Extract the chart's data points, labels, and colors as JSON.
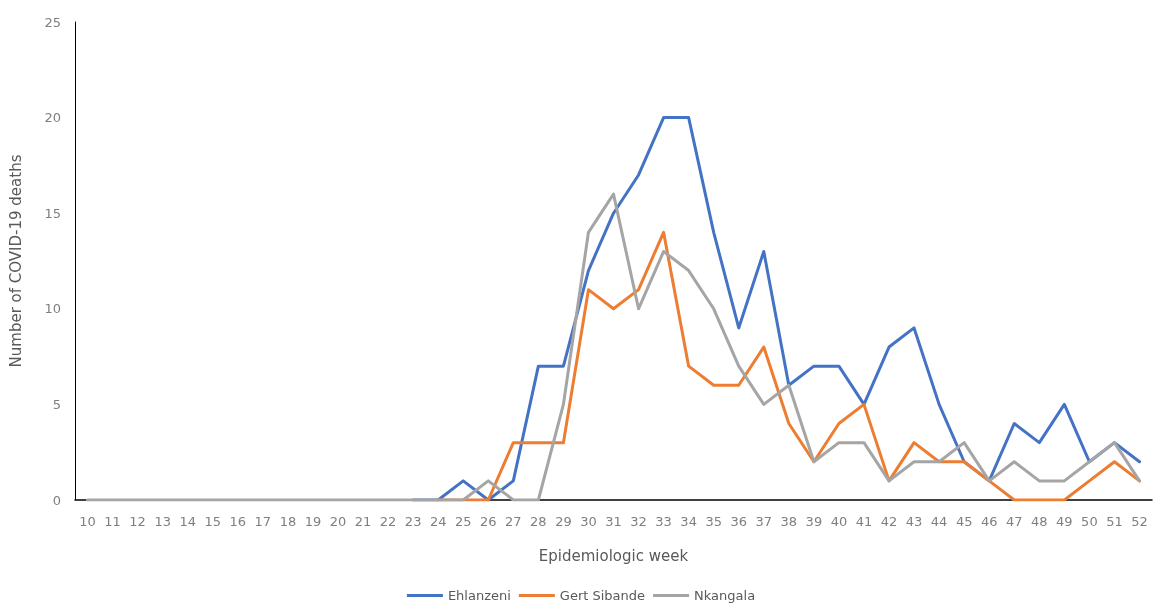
{
  "chart_data": {
    "type": "line",
    "xlabel": "Epidemiologic week",
    "ylabel": "Number of COVID-19 deaths",
    "categories": [
      "10",
      "11",
      "12",
      "13",
      "14",
      "15",
      "16",
      "17",
      "18",
      "19",
      "20",
      "21",
      "22",
      "23",
      "24",
      "25",
      "26",
      "27",
      "28",
      "29",
      "30",
      "31",
      "32",
      "33",
      "34",
      "35",
      "36",
      "37",
      "38",
      "39",
      "40",
      "41",
      "42",
      "43",
      "44",
      "45",
      "46",
      "47",
      "48",
      "49",
      "50",
      "51",
      "52"
    ],
    "series": [
      {
        "name": "Ehlanzeni",
        "color": "#4472c4",
        "values": [
          null,
          null,
          null,
          null,
          null,
          null,
          null,
          null,
          null,
          null,
          null,
          null,
          null,
          0,
          0,
          1,
          0,
          1,
          7,
          7,
          12,
          15,
          17,
          20,
          20,
          14,
          9,
          13,
          6,
          7,
          7,
          5,
          8,
          9,
          5,
          2,
          1,
          4,
          3,
          5,
          2,
          3,
          2
        ]
      },
      {
        "name": "Gert Sibande",
        "color": "#ed7d31",
        "values": [
          null,
          null,
          null,
          null,
          null,
          null,
          null,
          null,
          null,
          null,
          null,
          null,
          null,
          null,
          0,
          0,
          0,
          3,
          3,
          3,
          11,
          10,
          11,
          14,
          7,
          6,
          6,
          8,
          4,
          2,
          4,
          5,
          1,
          3,
          2,
          2,
          1,
          0,
          0,
          0,
          1,
          2,
          1
        ]
      },
      {
        "name": "Nkangala",
        "color": "#a5a5a5",
        "values": [
          0,
          0,
          0,
          0,
          0,
          0,
          0,
          0,
          0,
          0,
          0,
          0,
          0,
          0,
          0,
          0,
          1,
          0,
          0,
          5,
          14,
          16,
          10,
          13,
          12,
          10,
          7,
          5,
          6,
          2,
          3,
          3,
          1,
          2,
          2,
          3,
          1,
          2,
          1,
          1,
          2,
          3,
          1
        ]
      }
    ],
    "ylim": [
      0,
      25
    ],
    "yticks": [
      0,
      5,
      10,
      15,
      20,
      25
    ],
    "grid": false,
    "legend": "bottom",
    "marker": "none",
    "line_style": "solid"
  }
}
